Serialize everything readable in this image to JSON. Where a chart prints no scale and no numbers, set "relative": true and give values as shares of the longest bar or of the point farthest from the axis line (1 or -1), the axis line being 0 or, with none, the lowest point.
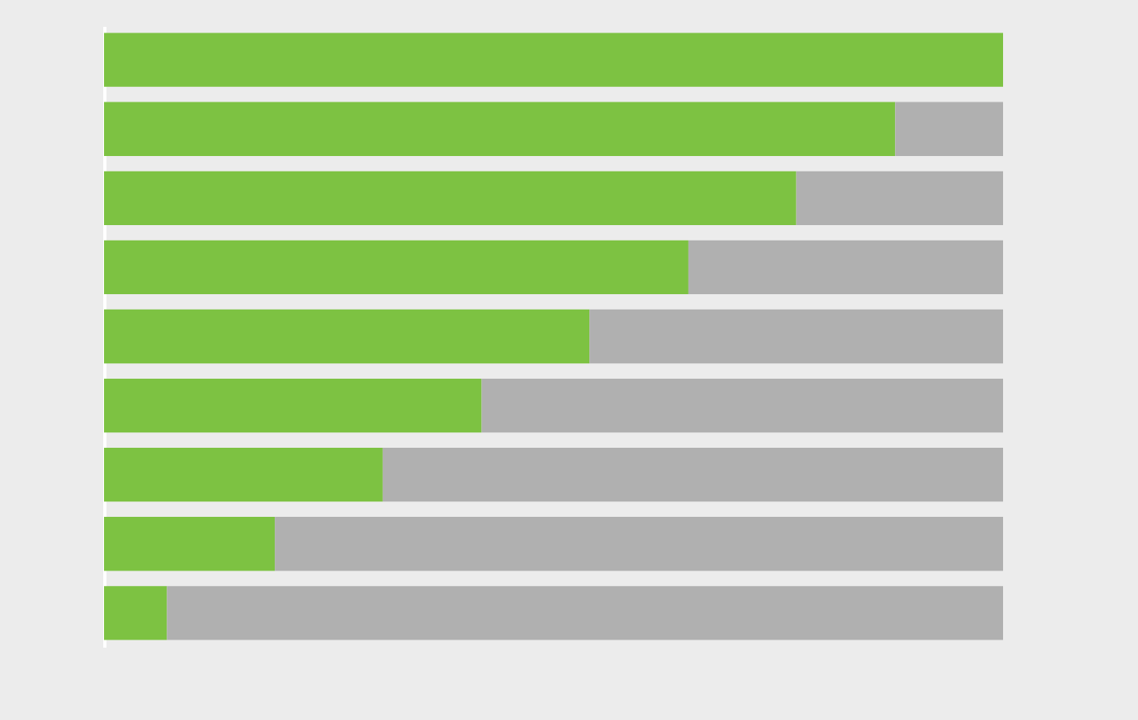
{
  "chart_data": {
    "type": "bar",
    "orientation": "horizontal",
    "stacked": true,
    "relative": true,
    "categories": [
      null,
      null,
      null,
      null,
      null,
      null,
      null,
      null,
      null
    ],
    "series": [
      {
        "color": "#7dc242",
        "values": [
          1,
          0.88,
          0.77,
          0.65,
          0.54,
          0.42,
          0.31,
          0.19,
          0.07
        ]
      },
      {
        "color": "#b0b0b0",
        "values": [
          null,
          0.12,
          0.23,
          0.35,
          0.46,
          0.58,
          0.69,
          0.81,
          0.93
        ]
      }
    ]
  }
}
